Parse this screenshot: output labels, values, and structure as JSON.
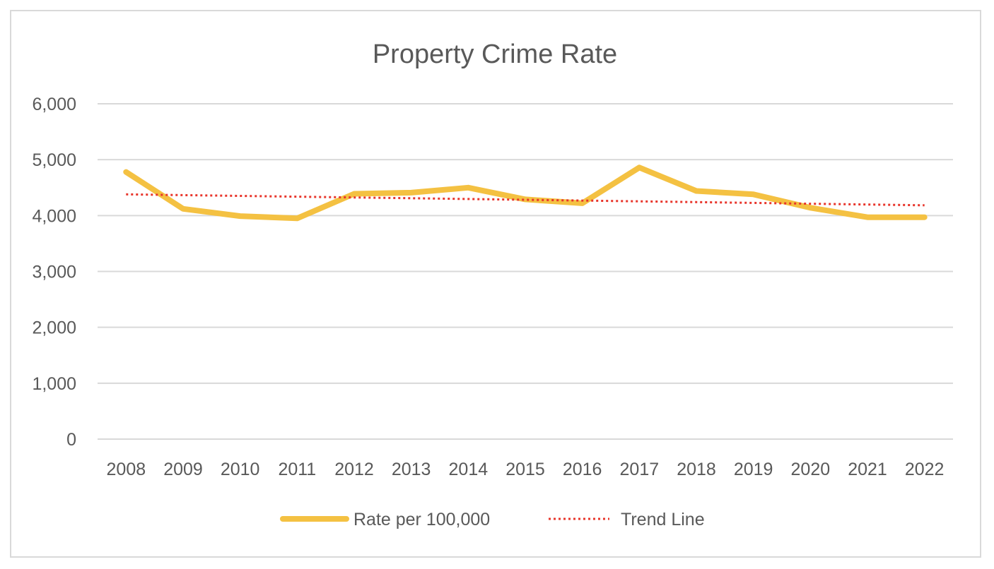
{
  "chart_data": {
    "type": "line",
    "title": "Property Crime  Rate",
    "xlabel": "",
    "ylabel": "",
    "categories": [
      "2008",
      "2009",
      "2010",
      "2011",
      "2012",
      "2013",
      "2014",
      "2015",
      "2016",
      "2017",
      "2018",
      "2019",
      "2020",
      "2021",
      "2022"
    ],
    "ylim": [
      0,
      6000
    ],
    "yticks": [
      0,
      1000,
      2000,
      3000,
      4000,
      5000,
      6000
    ],
    "ytick_labels": [
      "0",
      "1,000",
      "2,000",
      "3,000",
      "4,000",
      "5,000",
      "6,000"
    ],
    "grid": true,
    "legend_position": "bottom",
    "series": [
      {
        "name": "Rate per 100,000",
        "color": "#f4c142",
        "style": "solid",
        "values": [
          4780,
          4120,
          3990,
          3950,
          4390,
          4410,
          4500,
          4290,
          4220,
          4860,
          4440,
          4380,
          4140,
          3970,
          3970
        ]
      },
      {
        "name": "Trend Line",
        "color": "#e8352b",
        "style": "dotted",
        "values": [
          4380,
          4366,
          4352,
          4338,
          4324,
          4310,
          4296,
          4282,
          4268,
          4254,
          4240,
          4226,
          4212,
          4198,
          4184
        ]
      }
    ]
  }
}
